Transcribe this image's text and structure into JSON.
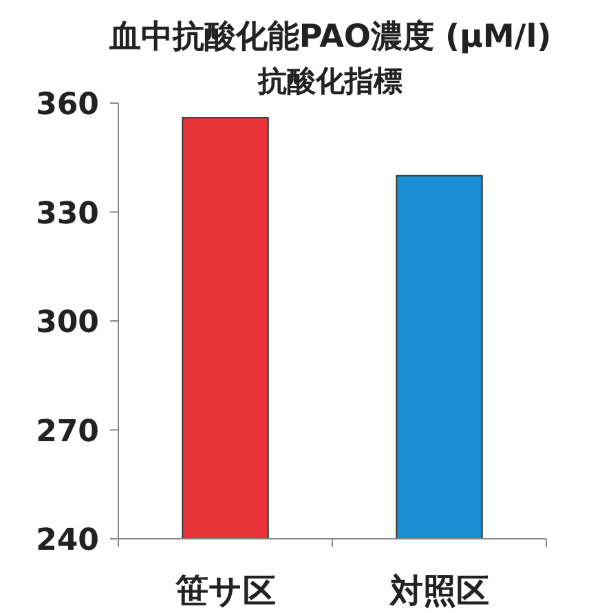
{
  "chart_data": {
    "type": "bar",
    "title": "血中抗酸化能PAO濃度 (μM/l)",
    "subtitle": "抗酸化指標",
    "categories": [
      "笹サ区",
      "対照区"
    ],
    "values": [
      356,
      340
    ],
    "colors": [
      "#e8333a",
      "#1b8fd2"
    ],
    "ylim": [
      240,
      360
    ],
    "yticks": [
      240,
      270,
      300,
      330,
      360
    ],
    "grid": false
  }
}
